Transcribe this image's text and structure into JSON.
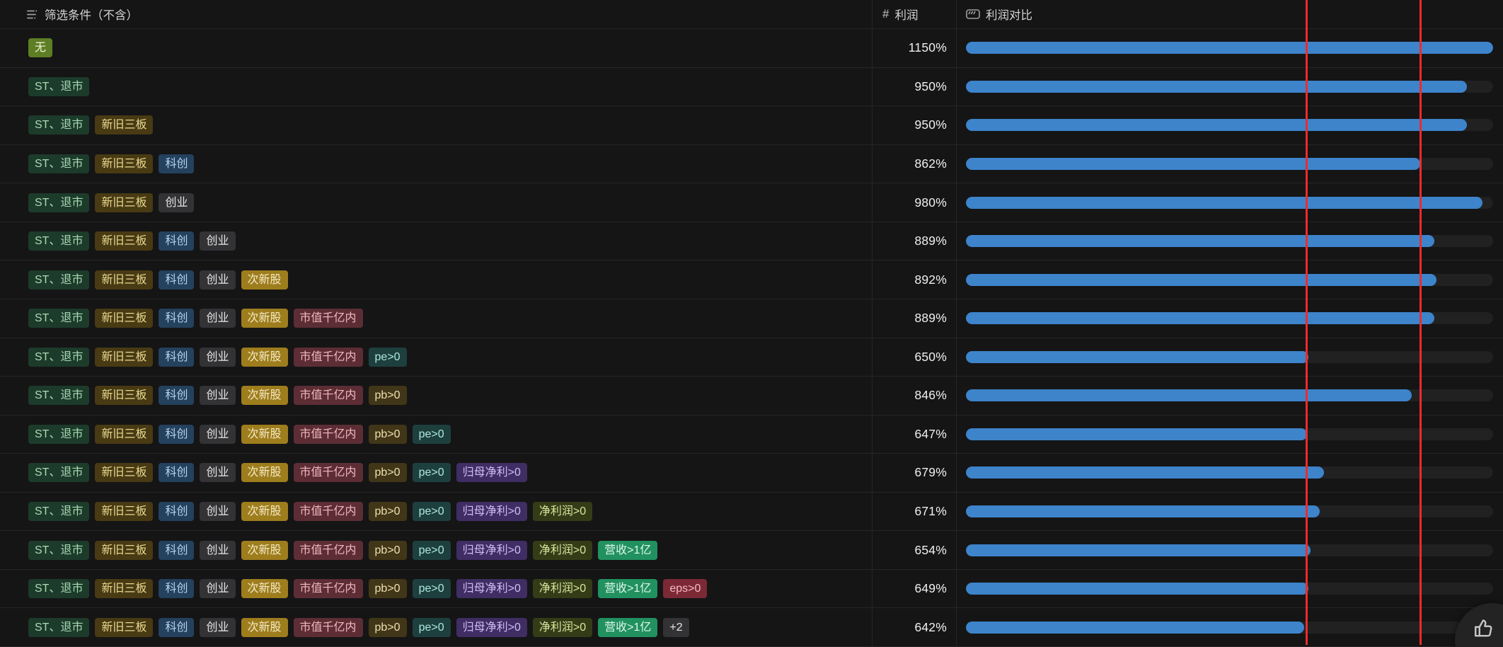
{
  "header": {
    "filter": {
      "label": "筛选条件（不含）",
      "icon": "filter-list-icon"
    },
    "profit": {
      "label": "利润",
      "icon_glyph": "#"
    },
    "compare": {
      "label": "利润对比",
      "icon": "progress-bar-icon"
    }
  },
  "tag_palette": {
    "无": {
      "bg": "#5e7e24",
      "fg": "#eef3da"
    },
    "ST、退市": {
      "bg": "#1d3b2b",
      "fg": "#a9dab4"
    },
    "新旧三板": {
      "bg": "#483a13",
      "fg": "#e9d98f"
    },
    "科创": {
      "bg": "#24415e",
      "fg": "#b9d3ef"
    },
    "创业": {
      "bg": "#333336",
      "fg": "#e6e6e6"
    },
    "次新股": {
      "bg": "#9e7d1d",
      "fg": "#f4eac6"
    },
    "市值千亿内": {
      "bg": "#5d2d35",
      "fg": "#f2b7be"
    },
    "pe>0": {
      "bg": "#1d403f",
      "fg": "#afe7de"
    },
    "pb>0": {
      "bg": "#413617",
      "fg": "#ebe0af"
    },
    "归母净利>0": {
      "bg": "#3f2d64",
      "fg": "#d0bdf3"
    },
    "净利润>0": {
      "bg": "#343c17",
      "fg": "#d7e69d"
    },
    "营收>1亿": {
      "bg": "#219160",
      "fg": "#e0f6e9"
    },
    "eps>0": {
      "bg": "#7c2936",
      "fg": "#f7bbc4"
    },
    "+2": {
      "bg": "#333336",
      "fg": "#e6e6e6"
    }
  },
  "rows": [
    {
      "tags": [
        "无"
      ],
      "profit": "1150%",
      "profit_pct": 1150
    },
    {
      "tags": [
        "ST、退市"
      ],
      "profit": "950%",
      "profit_pct": 950
    },
    {
      "tags": [
        "ST、退市",
        "新旧三板"
      ],
      "profit": "950%",
      "profit_pct": 950
    },
    {
      "tags": [
        "ST、退市",
        "新旧三板",
        "科创"
      ],
      "profit": "862%",
      "profit_pct": 862
    },
    {
      "tags": [
        "ST、退市",
        "新旧三板",
        "创业"
      ],
      "profit": "980%",
      "profit_pct": 980
    },
    {
      "tags": [
        "ST、退市",
        "新旧三板",
        "科创",
        "创业"
      ],
      "profit": "889%",
      "profit_pct": 889
    },
    {
      "tags": [
        "ST、退市",
        "新旧三板",
        "科创",
        "创业",
        "次新股"
      ],
      "profit": "892%",
      "profit_pct": 892
    },
    {
      "tags": [
        "ST、退市",
        "新旧三板",
        "科创",
        "创业",
        "次新股",
        "市值千亿内"
      ],
      "profit": "889%",
      "profit_pct": 889
    },
    {
      "tags": [
        "ST、退市",
        "新旧三板",
        "科创",
        "创业",
        "次新股",
        "市值千亿内",
        "pe>0"
      ],
      "profit": "650%",
      "profit_pct": 650
    },
    {
      "tags": [
        "ST、退市",
        "新旧三板",
        "科创",
        "创业",
        "次新股",
        "市值千亿内",
        "pb>0"
      ],
      "profit": "846%",
      "profit_pct": 846
    },
    {
      "tags": [
        "ST、退市",
        "新旧三板",
        "科创",
        "创业",
        "次新股",
        "市值千亿内",
        "pb>0",
        "pe>0"
      ],
      "profit": "647%",
      "profit_pct": 647
    },
    {
      "tags": [
        "ST、退市",
        "新旧三板",
        "科创",
        "创业",
        "次新股",
        "市值千亿内",
        "pb>0",
        "pe>0",
        "归母净利>0"
      ],
      "profit": "679%",
      "profit_pct": 679
    },
    {
      "tags": [
        "ST、退市",
        "新旧三板",
        "科创",
        "创业",
        "次新股",
        "市值千亿内",
        "pb>0",
        "pe>0",
        "归母净利>0",
        "净利润>0"
      ],
      "profit": "671%",
      "profit_pct": 671
    },
    {
      "tags": [
        "ST、退市",
        "新旧三板",
        "科创",
        "创业",
        "次新股",
        "市值千亿内",
        "pb>0",
        "pe>0",
        "归母净利>0",
        "净利润>0",
        "营收>1亿"
      ],
      "profit": "654%",
      "profit_pct": 654
    },
    {
      "tags": [
        "ST、退市",
        "新旧三板",
        "科创",
        "创业",
        "次新股",
        "市值千亿内",
        "pb>0",
        "pe>0",
        "归母净利>0",
        "净利润>0",
        "营收>1亿",
        "eps>0"
      ],
      "profit": "649%",
      "profit_pct": 649
    },
    {
      "tags": [
        "ST、退市",
        "新旧三板",
        "科创",
        "创业",
        "次新股",
        "市值千亿内",
        "pb>0",
        "pe>0",
        "归母净利>0",
        "净利润>0",
        "营收>1亿",
        "+2"
      ],
      "profit": "642%",
      "profit_pct": 642
    }
  ],
  "chart": {
    "scale_max_pct": 1000,
    "bar_color": "#3d84cb",
    "track_color": "#212122",
    "red_lines": {
      "color": "#ee2b2b",
      "positions_pct": [
        64.6,
        86.3
      ]
    }
  },
  "fab": {
    "icon": "thumbs-up-icon"
  }
}
